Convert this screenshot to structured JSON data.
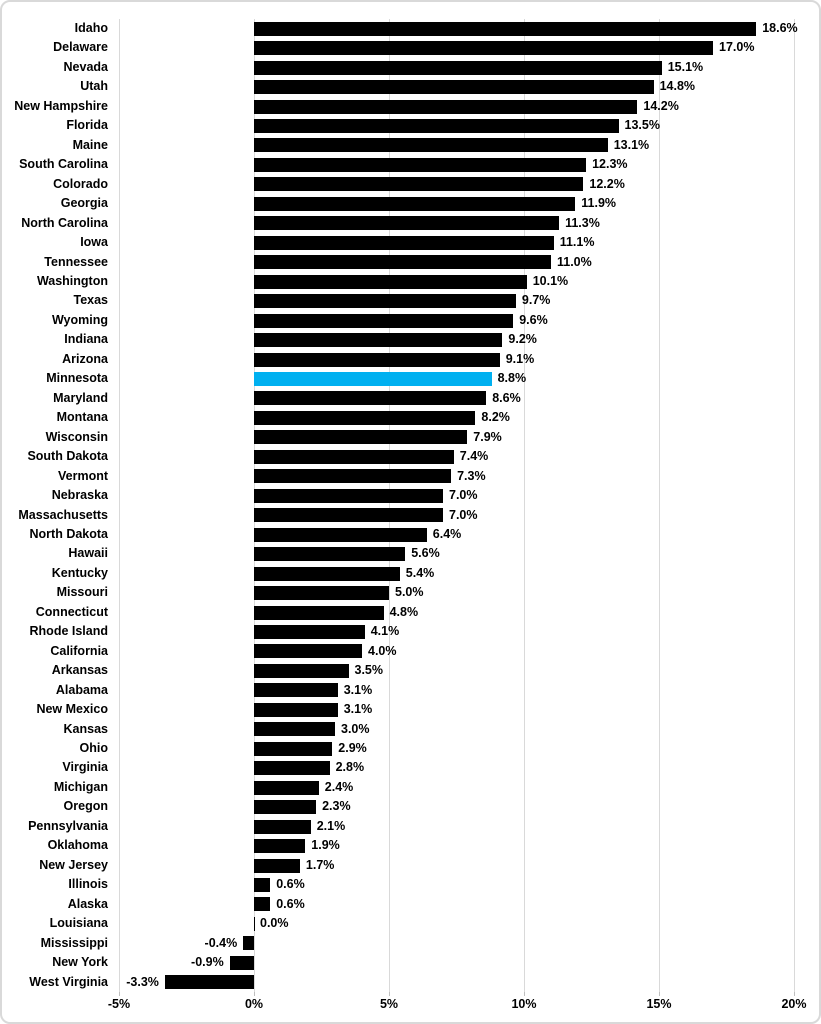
{
  "frame": {
    "background_color": "#FFFFFF",
    "border_color": "#D9D9D9"
  },
  "chart_data": {
    "type": "bar",
    "orientation": "horizontal",
    "title": "",
    "xlabel": "",
    "ylabel": "",
    "legend": false,
    "grid": true,
    "data_labels": true,
    "value_suffix": "%",
    "bar_color": "#000000",
    "highlight_color": "#00B0F0",
    "highlighted_category": "Minnesota",
    "gridline_color": "#D9D9D9",
    "text_color": "#000000",
    "x_axis": {
      "min": -5,
      "max": 20,
      "tick_labels": [
        "-5%",
        "0%",
        "5%",
        "10%",
        "15%",
        "20%"
      ],
      "tick_values": [
        -5,
        0,
        5,
        10,
        15,
        20
      ]
    },
    "categories": [
      "Idaho",
      "Delaware",
      "Nevada",
      "Utah",
      "New Hampshire",
      "Florida",
      "Maine",
      "South Carolina",
      "Colorado",
      "Georgia",
      "North Carolina",
      "Iowa",
      "Tennessee",
      "Washington",
      "Texas",
      "Wyoming",
      "Indiana",
      "Arizona",
      "Minnesota",
      "Maryland",
      "Montana",
      "Wisconsin",
      "South Dakota",
      "Vermont",
      "Nebraska",
      "Massachusetts",
      "North Dakota",
      "Hawaii",
      "Kentucky",
      "Missouri",
      "Connecticut",
      "Rhode Island",
      "California",
      "Arkansas",
      "Alabama",
      "New Mexico",
      "Kansas",
      "Ohio",
      "Virginia",
      "Michigan",
      "Oregon",
      "Pennsylvania",
      "Oklahoma",
      "New Jersey",
      "Illinois",
      "Alaska",
      "Louisiana",
      "Mississippi",
      "New York",
      "West Virginia"
    ],
    "values": [
      18.6,
      17.0,
      15.1,
      14.8,
      14.2,
      13.5,
      13.1,
      12.3,
      12.2,
      11.9,
      11.3,
      11.1,
      11.0,
      10.1,
      9.7,
      9.6,
      9.2,
      9.1,
      8.8,
      8.6,
      8.2,
      7.9,
      7.4,
      7.3,
      7.0,
      7.0,
      6.4,
      5.6,
      5.4,
      5.0,
      4.8,
      4.1,
      4.0,
      3.5,
      3.1,
      3.1,
      3.0,
      2.9,
      2.8,
      2.4,
      2.3,
      2.1,
      1.9,
      1.7,
      0.6,
      0.6,
      0.0,
      -0.4,
      -0.9,
      -3.3
    ]
  }
}
